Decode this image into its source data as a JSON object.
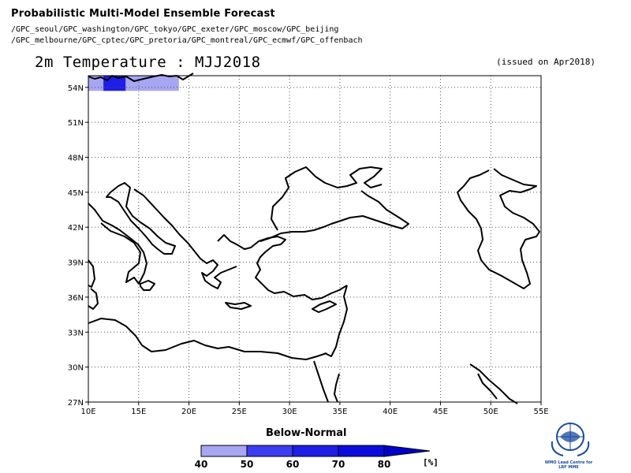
{
  "header": {
    "title": "Probabilistic Multi-Model Ensemble Forecast",
    "contributors_line1": "/GPC_seoul/GPC_washington/GPC_tokyo/GPC_exeter/GPC_moscow/GPC_beijing",
    "contributors_line2": "/GPC_melbourne/GPC_cptec/GPC_pretoria/GPC_montreal/GPC_ecmwf/GPC_offenbach",
    "subtitle": "2m Temperature : MJJ2018",
    "issued": "(issued on Apr2018)"
  },
  "map": {
    "lon_labels": [
      "10E",
      "15E",
      "20E",
      "25E",
      "30E",
      "35E",
      "40E",
      "45E",
      "50E",
      "55E"
    ],
    "lat_labels": [
      "27N",
      "30N",
      "33N",
      "36N",
      "39N",
      "42N",
      "45N",
      "48N",
      "51N",
      "54N"
    ],
    "lon_range": [
      10,
      55
    ],
    "lat_range": [
      27,
      55
    ],
    "grid": "dotted",
    "category": "Below-Normal",
    "shaded_cells": [
      {
        "lon_min": 10,
        "lon_max": 19,
        "lat_min": 53.7,
        "lat_max": 55,
        "probability_class": "40-50"
      },
      {
        "lon_min": 11.5,
        "lon_max": 13.7,
        "lat_min": 53.7,
        "lat_max": 55,
        "probability_class": "60-70"
      }
    ]
  },
  "legend": {
    "title": "Below-Normal",
    "ticks": [
      "40",
      "50",
      "60",
      "70",
      "80"
    ],
    "unit": "[%]",
    "colors": [
      "#a6a6f2",
      "#3c3cf0",
      "#1e1ee6",
      "#0c0cdc",
      "#0000c8"
    ]
  },
  "logo": {
    "caption": "WMO Lead Centre for LRF MME"
  }
}
